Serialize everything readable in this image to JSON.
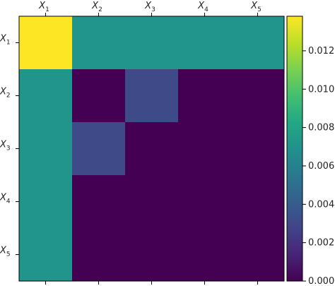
{
  "chart_data": {
    "type": "heatmap",
    "title": "",
    "xlabel": "",
    "ylabel": "",
    "x_tick_labels": [
      {
        "var": "X",
        "sub": "1"
      },
      {
        "var": "X",
        "sub": "2"
      },
      {
        "var": "X",
        "sub": "3"
      },
      {
        "var": "X",
        "sub": "4"
      },
      {
        "var": "X",
        "sub": "5"
      }
    ],
    "y_tick_labels": [
      {
        "var": "X",
        "sub": "1"
      },
      {
        "var": "X",
        "sub": "2"
      },
      {
        "var": "X",
        "sub": "3"
      },
      {
        "var": "X",
        "sub": "4"
      },
      {
        "var": "X",
        "sub": "5"
      }
    ],
    "x_tick_position": "top",
    "values": [
      [
        0.0138,
        0.0071,
        0.0071,
        0.0071,
        0.0071
      ],
      [
        0.0071,
        0.0,
        0.0031,
        0.0,
        0.0
      ],
      [
        0.0071,
        0.0031,
        0.0,
        0.0,
        0.0
      ],
      [
        0.0071,
        0.0,
        0.0,
        0.0,
        0.0
      ],
      [
        0.0071,
        0.0,
        0.0,
        0.0,
        0.0
      ]
    ],
    "colormap": "viridis",
    "colorbar": {
      "vmin": 0.0,
      "vmax": 0.0138,
      "ticks": [
        0.0,
        0.002,
        0.004,
        0.006,
        0.008,
        0.01,
        0.012
      ],
      "tick_labels": [
        "0.000",
        "0.002",
        "0.004",
        "0.006",
        "0.008",
        "0.010",
        "0.012"
      ],
      "position": "right"
    },
    "grid": false
  }
}
